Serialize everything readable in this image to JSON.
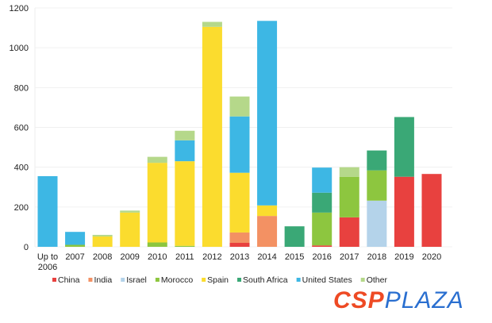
{
  "chart_data": {
    "type": "bar",
    "stacked": true,
    "categories": [
      "Up to 2006",
      "2007",
      "2008",
      "2009",
      "2010",
      "2011",
      "2012",
      "2013",
      "2014",
      "2015",
      "2016",
      "2017",
      "2018",
      "2019",
      "2020"
    ],
    "series": [
      {
        "name": "China",
        "color": "#e8413f",
        "values": [
          0,
          0,
          0,
          0,
          0,
          0,
          0,
          20,
          0,
          0,
          7,
          148,
          0,
          352,
          366
        ]
      },
      {
        "name": "India",
        "color": "#f39163",
        "values": [
          0,
          0,
          0,
          0,
          0,
          0,
          0,
          52,
          155,
          0,
          0,
          0,
          0,
          0,
          0
        ]
      },
      {
        "name": "Israel",
        "color": "#b4d3ea",
        "values": [
          0,
          0,
          0,
          0,
          0,
          0,
          0,
          0,
          0,
          0,
          0,
          0,
          232,
          0,
          0
        ]
      },
      {
        "name": "Morocco",
        "color": "#8dc63f",
        "values": [
          0,
          10,
          0,
          0,
          22,
          5,
          0,
          0,
          0,
          0,
          165,
          204,
          152,
          0,
          0
        ]
      },
      {
        "name": "Spain",
        "color": "#fbdc2e",
        "values": [
          0,
          0,
          52,
          172,
          400,
          425,
          1105,
          300,
          53,
          0,
          0,
          0,
          0,
          0,
          0
        ]
      },
      {
        "name": "South Africa",
        "color": "#3aa876",
        "values": [
          0,
          0,
          0,
          0,
          0,
          0,
          0,
          0,
          0,
          103,
          100,
          0,
          100,
          300,
          0
        ]
      },
      {
        "name": "United States",
        "color": "#3db7e4",
        "values": [
          355,
          65,
          0,
          0,
          0,
          105,
          0,
          283,
          927,
          0,
          126,
          0,
          0,
          0,
          0
        ]
      },
      {
        "name": "Other",
        "color": "#b5d88a",
        "values": [
          0,
          0,
          8,
          10,
          30,
          48,
          25,
          100,
          0,
          0,
          0,
          48,
          0,
          0,
          0
        ]
      }
    ],
    "yticks": [
      "0",
      "200",
      "400",
      "600",
      "800",
      "1000",
      "1200"
    ],
    "ylim": [
      0,
      1200
    ],
    "grid": true,
    "legend": "bottom"
  },
  "x_label_line2": "2006",
  "logo": {
    "part1": "CSP",
    "part2": "PLAZA"
  }
}
